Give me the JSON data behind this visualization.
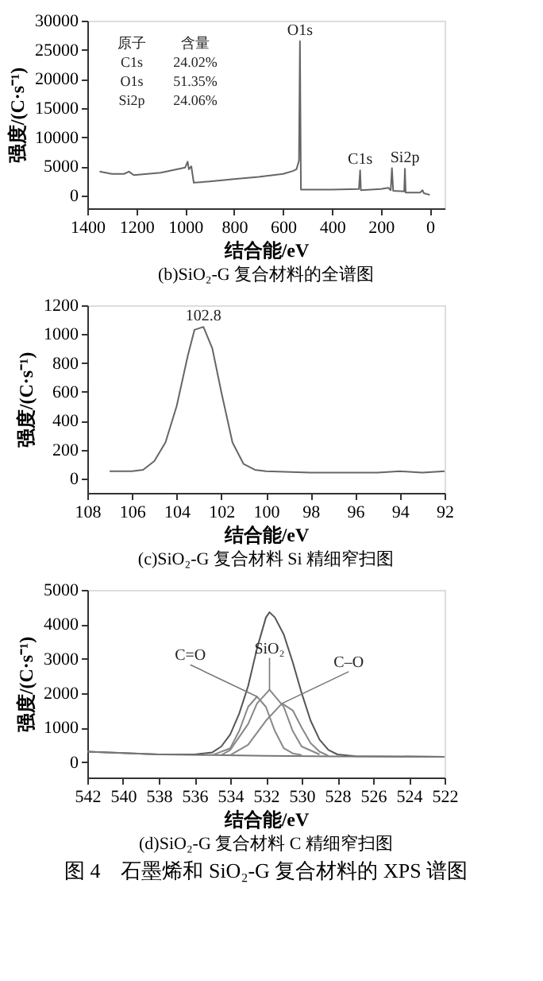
{
  "chart_data": [
    {
      "type": "line",
      "title": "(b)SiO₂-G 复合材料的全谱图",
      "xlabel": "结合能/eV",
      "ylabel": "强度/(C·s⁻¹)",
      "xlim": [
        1400,
        -60
      ],
      "xticks": [
        1400,
        1200,
        1000,
        800,
        600,
        400,
        200,
        0
      ],
      "ylim": [
        -2200,
        30000
      ],
      "yticks": [
        0,
        5000,
        10000,
        15000,
        20000,
        25000,
        30000
      ],
      "grid": false,
      "marker": "none",
      "line_style": "solid",
      "x": [
        1350,
        1300,
        1250,
        1230,
        1210,
        1100,
        1000,
        990,
        985,
        975,
        965,
        900,
        800,
        700,
        600,
        560,
        545,
        535,
        531,
        527,
        400,
        290,
        285,
        282,
        200,
        170,
        160,
        155,
        150,
        105,
        102,
        99,
        40,
        30,
        25,
        0
      ],
      "series": [
        {
          "color": "#666666",
          "values": [
            4100,
            3700,
            3700,
            4100,
            3500,
            3900,
            4800,
            5800,
            4500,
            5000,
            2200,
            2400,
            2800,
            3200,
            3700,
            4200,
            4500,
            6000,
            26500,
            1000,
            1000,
            1100,
            4300,
            900,
            1100,
            1300,
            900,
            4700,
            800,
            700,
            4600,
            500,
            500,
            900,
            400,
            100
          ]
        }
      ],
      "annotations": [
        "原子",
        "含量",
        "C1s",
        "24.02%",
        "O1s",
        "51.35%",
        "Si2p",
        "24.06%",
        {
          "text": "O1s",
          "x": 531,
          "y": 26500
        },
        {
          "text": "C1s",
          "x": 285,
          "y": 4300
        },
        {
          "text": "Si2p",
          "x": 102,
          "y": 4600
        }
      ]
    },
    {
      "type": "line",
      "title": "(c)SiO₂-G 复合材料 Si 精细窄扫图",
      "xlabel": "结合能/eV",
      "ylabel": "强度/(C·s⁻¹)",
      "xlim": [
        108,
        92
      ],
      "xticks": [
        108,
        106,
        104,
        102,
        100,
        98,
        96,
        94,
        92
      ],
      "ylim": [
        -100,
        1200
      ],
      "yticks": [
        0,
        200,
        400,
        600,
        800,
        1000,
        1200
      ],
      "grid": false,
      "marker": "none",
      "line_style": "solid",
      "x": [
        107,
        106,
        105.5,
        105,
        104.5,
        104,
        103.5,
        103.2,
        102.8,
        102.4,
        102,
        101.5,
        101,
        100.5,
        100,
        98,
        96,
        95,
        94,
        93,
        92
      ],
      "series": [
        {
          "color": "#666666",
          "values": [
            50,
            50,
            60,
            120,
            250,
            500,
            850,
            1030,
            1050,
            900,
            600,
            250,
            100,
            60,
            50,
            40,
            40,
            40,
            50,
            40,
            50
          ]
        }
      ],
      "annotations": [
        {
          "text": "102.8",
          "x": 102.8,
          "y": 1050
        }
      ]
    },
    {
      "type": "line",
      "title": "(d)SiO₂-G 复合材料 C 精细窄扫图",
      "subtitle": "图 4　石墨烯和 SiO₂-G 复合材料的 XPS 谱图",
      "xlabel": "结合能/eV",
      "ylabel": "强度/(C·s⁻¹)",
      "xlim": [
        542,
        522
      ],
      "xticks": [
        542,
        540,
        538,
        536,
        534,
        532,
        530,
        528,
        526,
        524,
        522
      ],
      "ylim": [
        -450,
        5000
      ],
      "yticks": [
        0,
        1000,
        2000,
        3000,
        4000,
        5000
      ],
      "grid": false,
      "marker": "none",
      "line_style": "solid",
      "series": [
        {
          "color": "#555555",
          "x": [
            542,
            538,
            536,
            535,
            534.5,
            534,
            533.5,
            533,
            532.5,
            532,
            531.8,
            531.5,
            531,
            530.5,
            530,
            529.5,
            529,
            528.5,
            528,
            527,
            522
          ],
          "values": [
            300,
            220,
            220,
            280,
            450,
            800,
            1400,
            2200,
            3300,
            4200,
            4350,
            4200,
            3700,
            2900,
            2000,
            1200,
            650,
            350,
            220,
            170,
            150
          ]
        },
        {
          "color": "#777777",
          "x": [
            542,
            538,
            535,
            532,
            528,
            522
          ],
          "values": [
            300,
            220,
            200,
            180,
            160,
            150
          ]
        },
        {
          "color": "#888888",
          "x": [
            535,
            534,
            533.5,
            533,
            532.5,
            532,
            531.5,
            531,
            530.5,
            530
          ],
          "values": [
            200,
            400,
            900,
            1600,
            1900,
            1600,
            900,
            400,
            250,
            200
          ]
        },
        {
          "color": "#888888",
          "x": [
            534.5,
            534,
            533,
            532.5,
            531.8,
            531,
            530.5,
            530,
            529
          ],
          "values": [
            200,
            350,
            1100,
            1700,
            2100,
            1600,
            900,
            450,
            220
          ]
        },
        {
          "color": "#888888",
          "x": [
            534,
            533,
            532,
            531.1,
            530.5,
            530,
            529.5,
            529,
            528.5
          ],
          "values": [
            200,
            500,
            1200,
            1700,
            1500,
            1000,
            550,
            300,
            180
          ]
        }
      ],
      "annotations": [
        {
          "text": "C=O",
          "x": 532.5,
          "y": 1900
        },
        {
          "text": "SiO₂",
          "x": 531.8,
          "y": 2100
        },
        {
          "text": "C–O",
          "x": 531.1,
          "y": 1700
        }
      ]
    }
  ]
}
